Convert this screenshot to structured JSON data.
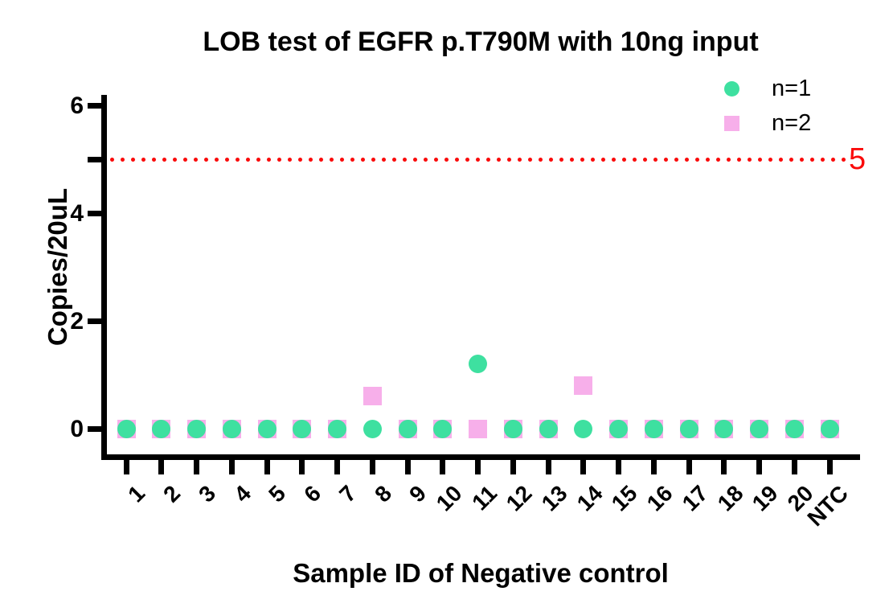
{
  "title": "LOB test of EGFR p.T790M with 10ng input",
  "x_axis_label": "Sample ID of Negative control",
  "y_axis_label": "Copies/20uL",
  "legend": {
    "position": "top-right",
    "items": [
      {
        "label": "n=1",
        "marker": "circle",
        "color": "#3EE0A0"
      },
      {
        "label": "n=2",
        "marker": "square",
        "color": "#F7AFEA"
      }
    ]
  },
  "reference_line": {
    "value": 5,
    "label": "5",
    "style": "dotted",
    "color": "#FA0B0B"
  },
  "chart_data": {
    "type": "scatter",
    "title": "LOB test of EGFR p.T790M with 10ng input",
    "xlabel": "Sample ID of Negative control",
    "ylabel": "Copies/20uL",
    "categories": [
      "1",
      "2",
      "3",
      "4",
      "5",
      "6",
      "7",
      "8",
      "9",
      "10",
      "11",
      "12",
      "13",
      "14",
      "15",
      "16",
      "17",
      "18",
      "19",
      "20",
      "NTC"
    ],
    "series": [
      {
        "name": "n=1",
        "marker": "circle",
        "color": "#3EE0A0",
        "values": [
          0,
          0,
          0,
          0,
          0,
          0,
          0,
          0,
          0,
          0,
          1.2,
          0,
          0,
          0,
          0,
          0,
          0,
          0,
          0,
          0,
          0
        ]
      },
      {
        "name": "n=2",
        "marker": "square",
        "color": "#F7AFEA",
        "values": [
          0,
          0,
          0,
          0,
          0,
          0,
          0,
          0.6,
          0,
          0,
          0,
          0,
          0,
          0.8,
          0,
          0,
          0,
          0,
          0,
          0,
          0
        ]
      }
    ],
    "ylim": [
      0,
      6
    ],
    "yticks": [
      0,
      2,
      4,
      6
    ],
    "reference_line": {
      "y": 5,
      "label": "5",
      "style": "dotted",
      "color": "#FA0B0B"
    },
    "legend_position": "top-right",
    "grid": false
  }
}
